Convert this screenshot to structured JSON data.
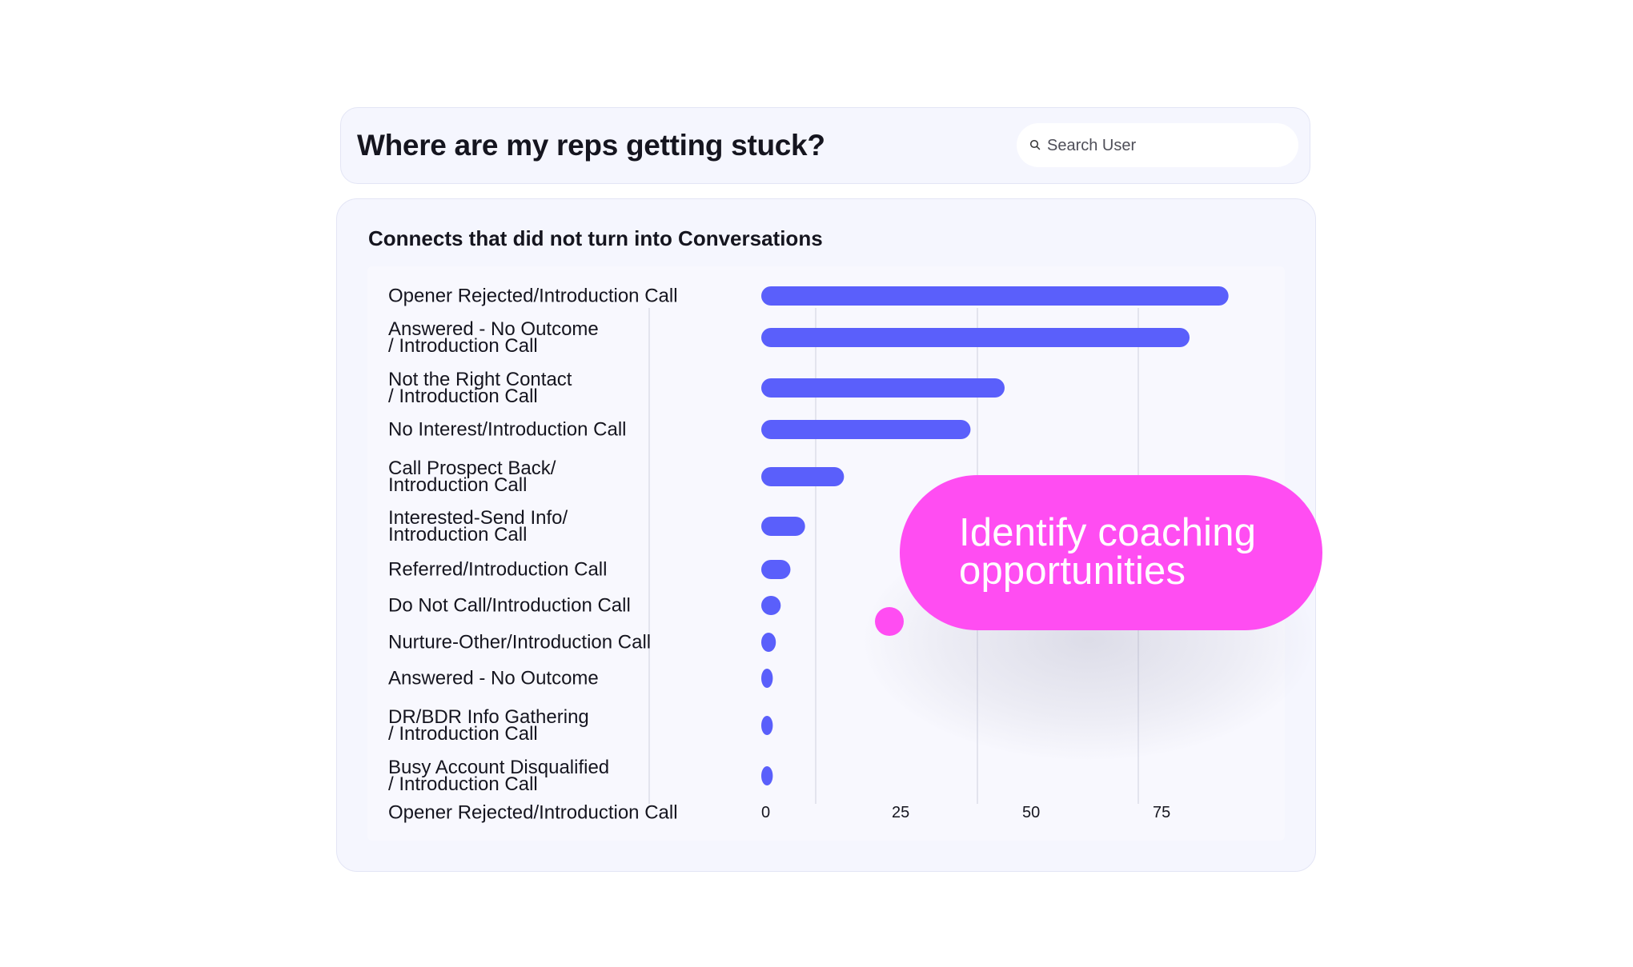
{
  "header": {
    "title": "Where are my reps getting stuck?",
    "search_placeholder": "Search User"
  },
  "callout": {
    "text": "Identify coaching opportunities"
  },
  "colors": {
    "bar": "#5a5ffb",
    "accent": "#ff4df2",
    "card_bg": "#f5f6fe"
  },
  "icons": {
    "search": "search-icon"
  },
  "chart_data": {
    "type": "bar",
    "orientation": "horizontal",
    "title": "Connects that did not turn into Conversations",
    "categories": [
      [
        "Opener Rejected/Introduction Call"
      ],
      [
        "Answered - No Outcome",
        "/ Introduction Call"
      ],
      [
        "Not the Right Contact",
        "/ Introduction Call"
      ],
      [
        "No Interest/Introduction Call"
      ],
      [
        "Call Prospect Back/",
        "Introduction Call"
      ],
      [
        "Interested-Send Info/",
        "Introduction Call"
      ],
      [
        "Referred/Introduction Call"
      ],
      [
        "Do Not Call/Introduction Call"
      ],
      [
        "Nurture-Other/Introduction Call"
      ],
      [
        "Answered - No Outcome"
      ],
      [
        "DR/BDR Info Gathering",
        "/ Introduction Call"
      ],
      [
        "Busy Account Disqualified",
        "/ Introduction Call"
      ]
    ],
    "values": [
      96,
      88,
      50,
      43,
      17,
      9,
      6,
      4,
      3,
      2,
      1.5,
      1
    ],
    "x_ticks": [
      "0",
      "25",
      "50",
      "75"
    ],
    "x_axis_label": "Opener Rejected/Introduction Call",
    "xlim": [
      0,
      100
    ],
    "grid": true
  }
}
